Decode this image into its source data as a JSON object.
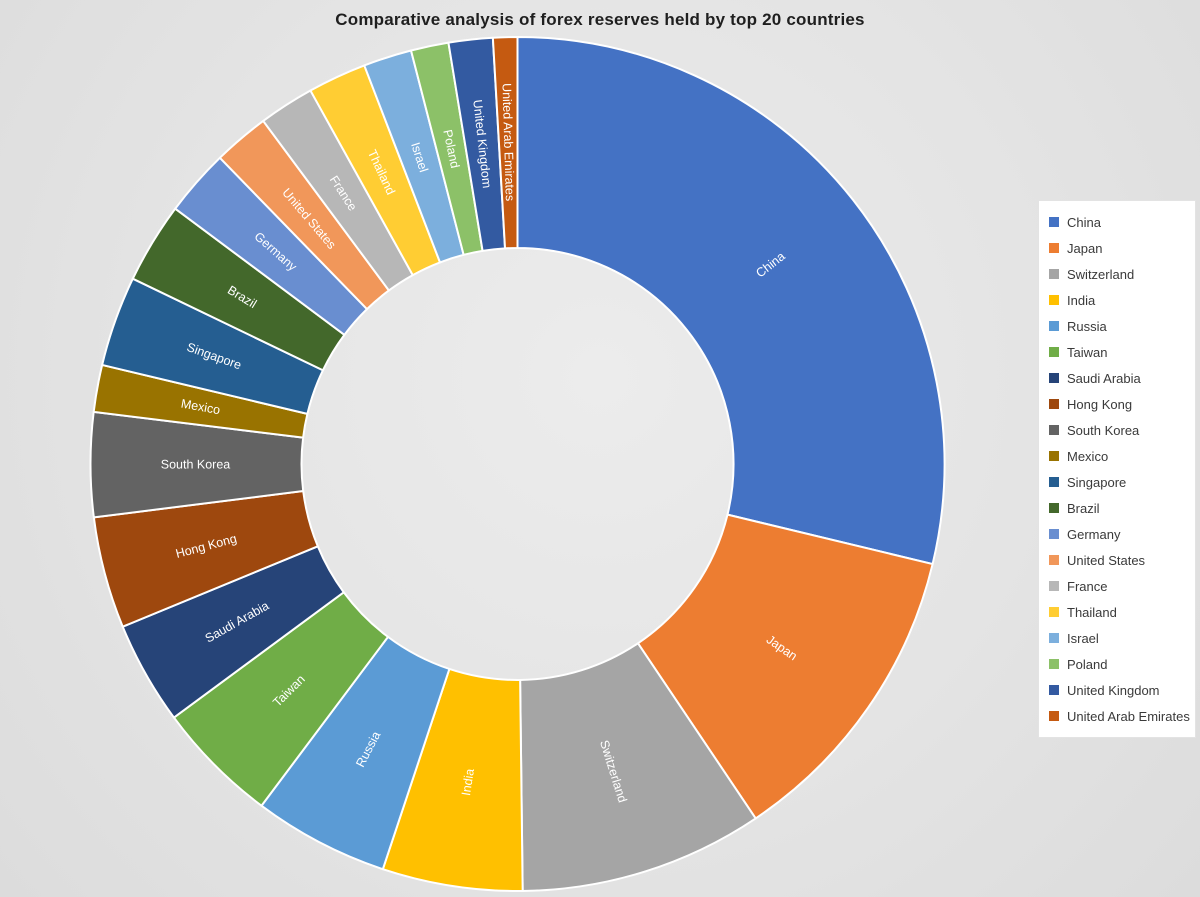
{
  "chart_data": {
    "type": "pie",
    "subtype": "doughnut",
    "title": "Comparative analysis of forex reserves held by top 20 countries",
    "categories": [
      "China",
      "Japan",
      "Switzerland",
      "India",
      "Russia",
      "Taiwan",
      "Saudi Arabia",
      "Hong Kong",
      "South Korea",
      "Mexico",
      "Singapore",
      "Brazil",
      "Germany",
      "United States",
      "France",
      "Thailand",
      "Israel",
      "Poland",
      "United Kingdom",
      "United Arab Emirates"
    ],
    "values": [
      3349,
      1376,
      1074,
      617,
      597,
      541,
      454,
      492,
      459,
      207,
      398,
      356,
      294,
      247,
      244,
      258,
      213,
      166,
      194,
      107
    ],
    "colors": [
      "#4472C4",
      "#ED7D31",
      "#A5A5A5",
      "#FFC000",
      "#5B9BD5",
      "#70AD47",
      "#264478",
      "#9E480E",
      "#636363",
      "#997300",
      "#255E91",
      "#43682B",
      "#698ED0",
      "#F1975A",
      "#B7B7B7",
      "#FFCD33",
      "#7CAFDD",
      "#8CC168",
      "#335AA1",
      "#C55A11"
    ],
    "start_angle_deg": 0,
    "direction": "clockwise",
    "inner_radius_ratio": 0.505,
    "slice_label_color": "#ffffff",
    "legend_position": "right",
    "grid": "off"
  }
}
